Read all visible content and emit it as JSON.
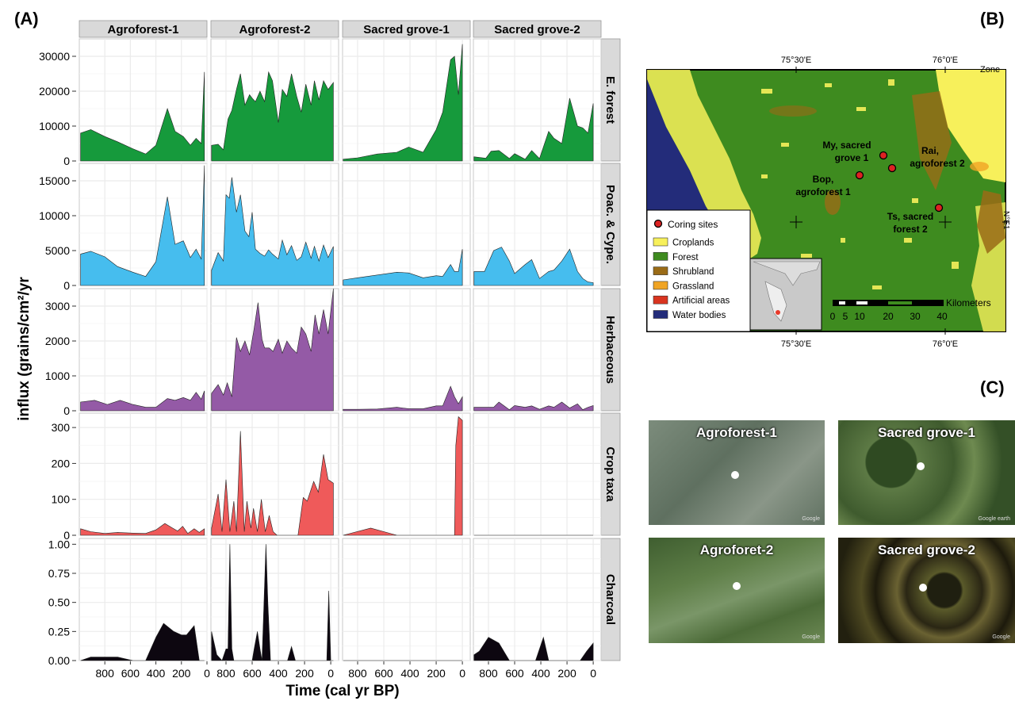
{
  "panels": {
    "a": "(A)",
    "b": "(B)",
    "c": "(C)"
  },
  "chart_data": {
    "type": "area",
    "xlabel": "Time (cal yr BP)",
    "ylabel": "influx (grains/cm²/yr",
    "columns": [
      "Agroforest-1",
      "Agroforest-2",
      "Sacred grove-1",
      "Sacred grove-2"
    ],
    "rows": [
      {
        "name": "E. forest",
        "color": "#169a3c",
        "ylim": [
          0,
          35000
        ],
        "ticks": [
          0,
          10000,
          20000,
          30000
        ],
        "tick_labels": [
          "0",
          "10000",
          "20000",
          "30000"
        ]
      },
      {
        "name": "Poac. & Cype.",
        "color": "#46bdee",
        "ylim": [
          0,
          17500
        ],
        "ticks": [
          0,
          5000,
          10000,
          15000
        ],
        "tick_labels": [
          "0",
          "5000",
          "10000",
          "15000"
        ]
      },
      {
        "name": "Herbaceous",
        "color": "#945aa6",
        "ylim": [
          0,
          3500
        ],
        "ticks": [
          0,
          1000,
          2000,
          3000
        ],
        "tick_labels": [
          "0",
          "1000",
          "2000",
          "3000"
        ]
      },
      {
        "name": "Crop taxa",
        "color": "#ef5a5a",
        "ylim": [
          0,
          340
        ],
        "ticks": [
          0,
          100,
          200,
          300
        ],
        "tick_labels": [
          "0",
          "100",
          "200",
          "300"
        ]
      },
      {
        "name": "Charcoal",
        "color": "#0d0710",
        "ylim": [
          0,
          1.05
        ],
        "ticks": [
          0,
          0.25,
          0.5,
          0.75,
          1
        ],
        "tick_labels": [
          "0.00",
          "0.25",
          "0.50",
          "0.75",
          "1.00"
        ]
      }
    ],
    "x_axes": [
      {
        "range": [
          1000,
          0
        ],
        "ticks": [
          800,
          600,
          400,
          200,
          0
        ],
        "tick_labels": [
          "800",
          "600",
          "400",
          "200",
          "0"
        ]
      },
      {
        "range": [
          915,
          -60
        ],
        "ticks": [
          800,
          600,
          400,
          200,
          0
        ],
        "tick_labels": [
          "800",
          "600",
          "400",
          "200",
          "0"
        ]
      },
      {
        "range": [
          915,
          -60
        ],
        "ticks": [
          800,
          600,
          400,
          200,
          0
        ],
        "tick_labels": [
          "800",
          "600",
          "400",
          "200",
          "0"
        ]
      },
      {
        "range": [
          915,
          -60
        ],
        "ticks": [
          800,
          600,
          400,
          200,
          0
        ],
        "tick_labels": [
          "800",
          "600",
          "400",
          "200",
          "0"
        ]
      }
    ],
    "series": [
      [
        {
          "x": [
            990,
            910,
            800,
            700,
            580,
            480,
            400,
            310,
            250,
            185,
            130,
            85,
            45,
            20
          ],
          "y": [
            8000,
            9000,
            7000,
            5500,
            3500,
            2000,
            4500,
            15000,
            8500,
            7000,
            4500,
            6500,
            5000,
            25500
          ]
        },
        {
          "x": [
            990,
            910,
            800,
            700,
            580,
            480,
            400,
            310,
            250,
            185,
            130,
            85,
            45,
            20
          ],
          "y": [
            4500,
            4900,
            4100,
            2700,
            1900,
            1300,
            3400,
            12700,
            5900,
            6400,
            4000,
            5200,
            3800,
            17200
          ]
        },
        {
          "x": [
            990,
            880,
            780,
            680,
            580,
            480,
            400,
            310,
            250,
            185,
            130,
            85,
            45,
            20
          ],
          "y": [
            250,
            300,
            180,
            300,
            180,
            100,
            100,
            350,
            300,
            380,
            300,
            530,
            330,
            570
          ]
        },
        {
          "x": [
            990,
            910,
            800,
            700,
            580,
            480,
            400,
            330,
            270,
            230,
            190,
            150,
            100,
            60,
            20
          ],
          "y": [
            18,
            10,
            5,
            8,
            6,
            5,
            15,
            33,
            20,
            12,
            25,
            5,
            18,
            8,
            18
          ]
        },
        {
          "x": [
            990,
            910,
            800,
            700,
            580,
            480,
            400,
            340,
            260,
            200,
            160,
            100,
            60,
            20
          ],
          "y": [
            0,
            0.03,
            0.03,
            0.03,
            0,
            0,
            0.2,
            0.32,
            0.25,
            0.22,
            0.22,
            0.3,
            0,
            0
          ]
        }
      ],
      [
        {
          "x": [
            910,
            860,
            820,
            785,
            755,
            720,
            690,
            655,
            620,
            600,
            575,
            540,
            505,
            475,
            445,
            400,
            370,
            335,
            300,
            260,
            225,
            190,
            150,
            125,
            90,
            55,
            20,
            -20
          ],
          "y": [
            4500,
            4800,
            3200,
            12000,
            14500,
            20500,
            25000,
            16000,
            19000,
            18000,
            17000,
            20000,
            17000,
            25500,
            23000,
            11000,
            20500,
            18500,
            25000,
            18500,
            14000,
            22000,
            16000,
            23000,
            17500,
            23000,
            20500,
            22500
          ]
        },
        {
          "x": [
            910,
            860,
            820,
            800,
            775,
            755,
            720,
            690,
            655,
            625,
            600,
            575,
            540,
            505,
            475,
            445,
            400,
            370,
            335,
            300,
            260,
            225,
            190,
            150,
            125,
            90,
            55,
            20,
            -20
          ],
          "y": [
            2200,
            4700,
            3500,
            13000,
            12500,
            15500,
            10500,
            13000,
            7800,
            7000,
            10500,
            5200,
            4600,
            4200,
            5100,
            4500,
            3800,
            6500,
            4400,
            5700,
            3600,
            4100,
            6200,
            3900,
            5600,
            3500,
            5800,
            4000,
            5600
          ]
        },
        {
          "x": [
            910,
            860,
            820,
            790,
            755,
            720,
            690,
            655,
            620,
            590,
            555,
            525,
            505,
            470,
            440,
            400,
            370,
            335,
            300,
            260,
            225,
            190,
            150,
            120,
            90,
            55,
            20,
            -20
          ],
          "y": [
            500,
            750,
            450,
            800,
            400,
            2100,
            1700,
            2000,
            1600,
            2250,
            3100,
            2050,
            1800,
            1800,
            1700,
            2050,
            1650,
            2000,
            1800,
            1650,
            2400,
            2200,
            1700,
            2750,
            2200,
            2900,
            2200,
            3500
          ]
        },
        {
          "x": [
            910,
            860,
            830,
            800,
            770,
            740,
            720,
            690,
            660,
            640,
            610,
            590,
            560,
            530,
            500,
            470,
            440,
            410,
            250,
            210,
            180,
            130,
            95,
            55,
            20,
            -20
          ],
          "y": [
            20,
            115,
            10,
            155,
            10,
            95,
            10,
            290,
            10,
            95,
            20,
            75,
            10,
            100,
            10,
            55,
            10,
            0,
            0,
            105,
            95,
            150,
            120,
            225,
            155,
            145
          ]
        },
        {
          "x": [
            910,
            870,
            830,
            800,
            785,
            770,
            755,
            740,
            600,
            585,
            560,
            540,
            525,
            510,
            495,
            480,
            460,
            440,
            330,
            300,
            270,
            60,
            30,
            15,
            0,
            -15,
            -20
          ],
          "y": [
            0.25,
            0.05,
            0,
            0.1,
            0.1,
            1,
            0.1,
            0,
            0,
            0.1,
            0.25,
            0.1,
            0,
            0.5,
            1,
            0.5,
            0,
            0,
            0,
            0.12,
            0,
            0,
            0,
            0.6,
            0,
            0,
            0
          ]
        }
      ],
      [
        {
          "x": [
            910,
            800,
            650,
            500,
            410,
            300,
            200,
            150,
            90,
            60,
            30,
            0
          ],
          "y": [
            500,
            900,
            2000,
            2500,
            4000,
            2500,
            9000,
            14000,
            29000,
            30000,
            19000,
            33500
          ]
        },
        {
          "x": [
            910,
            800,
            650,
            500,
            410,
            300,
            200,
            150,
            90,
            60,
            30,
            0
          ],
          "y": [
            800,
            1100,
            1500,
            1900,
            1800,
            1100,
            1400,
            1300,
            3000,
            2000,
            2000,
            5200
          ]
        },
        {
          "x": [
            910,
            800,
            650,
            500,
            410,
            300,
            200,
            150,
            90,
            60,
            30,
            0
          ],
          "y": [
            40,
            40,
            50,
            100,
            60,
            60,
            140,
            140,
            700,
            400,
            200,
            400
          ]
        },
        {
          "x": [
            910,
            700,
            500,
            300,
            200,
            100,
            60,
            50,
            30,
            0
          ],
          "y": [
            0,
            20,
            0,
            0,
            0,
            0,
            0,
            250,
            330,
            320
          ]
        },
        {
          "x": [
            910,
            0
          ],
          "y": [
            0,
            0
          ]
        }
      ],
      [
        {
          "x": [
            910,
            820,
            780,
            720,
            640,
            600,
            520,
            470,
            410,
            340,
            300,
            240,
            180,
            120,
            80,
            40,
            0
          ],
          "y": [
            1200,
            800,
            2800,
            3000,
            700,
            2100,
            500,
            3000,
            700,
            8500,
            6500,
            5000,
            18000,
            10000,
            9500,
            8000,
            16500
          ]
        },
        {
          "x": [
            910,
            830,
            760,
            700,
            640,
            600,
            520,
            470,
            410,
            340,
            300,
            240,
            180,
            120,
            80,
            40,
            0
          ],
          "y": [
            2000,
            2000,
            5000,
            5500,
            3500,
            1700,
            3000,
            3700,
            1000,
            2000,
            2200,
            3500,
            5200,
            2000,
            1000,
            500,
            400
          ]
        },
        {
          "x": [
            910,
            820,
            760,
            720,
            640,
            600,
            520,
            470,
            410,
            340,
            300,
            240,
            180,
            120,
            80,
            40,
            0
          ],
          "y": [
            100,
            100,
            100,
            250,
            30,
            150,
            100,
            140,
            40,
            140,
            100,
            250,
            80,
            200,
            30,
            100,
            150
          ]
        },
        {
          "x": [
            910,
            0
          ],
          "y": [
            0,
            0
          ]
        },
        {
          "x": [
            910,
            870,
            800,
            720,
            640,
            440,
            380,
            340,
            100,
            50,
            0
          ],
          "y": [
            0.05,
            0.08,
            0.2,
            0.15,
            0,
            0,
            0.2,
            0,
            0,
            0.08,
            0.15
          ]
        }
      ]
    ]
  },
  "map": {
    "top_labels": [
      "75°30'E",
      "76°0'E"
    ],
    "bottom_labels": [
      "75°30'E",
      "76°0'E"
    ],
    "right_label": "N°E1",
    "top_right_label": "Zone",
    "sites": [
      {
        "label_line1": "My, sacred",
        "label_line2": "grove 1"
      },
      {
        "label_line1": "Rai,",
        "label_line2": "agroforest 2"
      },
      {
        "label_line1": "Bop,",
        "label_line2": "agroforest 1"
      },
      {
        "label_line1": "Ts, sacred",
        "label_line2": "forest 2"
      }
    ],
    "legend_title": "Coring sites",
    "legend": [
      {
        "label": "Croplands",
        "color": "#f7f05b"
      },
      {
        "label": "Forest",
        "color": "#3e8b1f"
      },
      {
        "label": "Shrubland",
        "color": "#9a6b16"
      },
      {
        "label": "Grassland",
        "color": "#f0a424"
      },
      {
        "label": "Artificial areas",
        "color": "#d9341f"
      },
      {
        "label": "Water bodies",
        "color": "#232c7a"
      }
    ],
    "scalebar_title": "Kilometers",
    "scalebar_ticks": [
      "0",
      "5",
      "10",
      "20",
      "30",
      "40"
    ]
  },
  "photos": [
    {
      "label": "Agroforest-1",
      "google": "Google"
    },
    {
      "label": "Sacred grove-1",
      "google": "Google earth"
    },
    {
      "label": "Agroforet-2",
      "google": "Google"
    },
    {
      "label": "Sacred grove-2",
      "google": "Google"
    }
  ],
  "colors": {
    "strip": "#d9d9d9",
    "grid": "#ebebeb",
    "photo1": "#6d7f6d",
    "photo2": "#3d5a2c",
    "photo3": "#4d6d3a",
    "photo4": "#2f2a18"
  }
}
